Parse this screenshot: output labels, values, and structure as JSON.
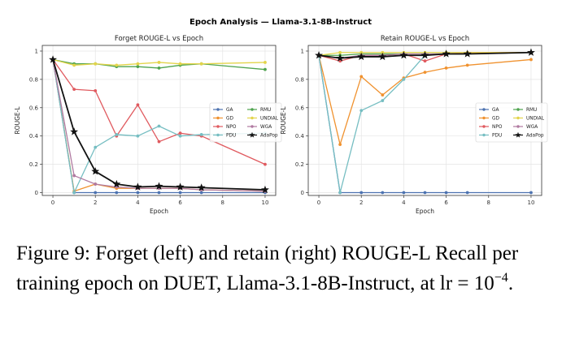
{
  "suptitle": "Epoch Analysis — Llama-3.1-8B-Instruct",
  "caption": {
    "main": "Figure 9: Forget (left) and retain (right) ROUGE-L Recall per training epoch on DUET, Llama-3.1-8B-Instruct, at lr = 10",
    "exponent": "−4",
    "end": "."
  },
  "colors": {
    "GA": "#4c72b0",
    "GD": "#f0922f",
    "NPO": "#e05a5f",
    "PDU": "#76bec2",
    "RMU": "#4ea34e",
    "UNDIAL": "#e3d44a",
    "WGA": "#b07aa1",
    "AdaPop": "#111111"
  },
  "chart_data": [
    {
      "type": "line",
      "title": "Forget ROUGE-L vs Epoch",
      "xlabel": "Epoch",
      "ylabel": "ROUGE-L",
      "xlim": [
        -0.5,
        10.5
      ],
      "ylim": [
        -0.02,
        1.04
      ],
      "xticks": [
        0,
        2,
        4,
        6,
        8,
        10
      ],
      "yticks": [
        0.0,
        0.2,
        0.4,
        0.6,
        0.8,
        1.0
      ],
      "grid": true,
      "legend": "center-right",
      "legend_cols": [
        [
          "GA",
          "GD",
          "NPO",
          "PDU"
        ],
        [
          "RMU",
          "UNDIAL",
          "WGA",
          "AdaPop"
        ]
      ],
      "x": [
        0,
        1,
        2,
        3,
        4,
        5,
        6,
        7,
        10
      ],
      "series": [
        {
          "name": "GA",
          "values": [
            0.94,
            0.0,
            0.0,
            0.0,
            0.0,
            0.0,
            0.0,
            0.0,
            0.0
          ]
        },
        {
          "name": "GD",
          "values": [
            0.94,
            0.01,
            0.06,
            0.03,
            0.03,
            0.03,
            0.03,
            0.02,
            0.01
          ]
        },
        {
          "name": "NPO",
          "values": [
            0.94,
            0.73,
            0.72,
            0.4,
            0.62,
            0.36,
            0.42,
            0.4,
            0.2
          ]
        },
        {
          "name": "PDU",
          "values": [
            0.94,
            0.0,
            0.32,
            0.41,
            0.4,
            0.47,
            0.4,
            0.41,
            0.42
          ]
        },
        {
          "name": "RMU",
          "values": [
            0.94,
            0.91,
            0.91,
            0.89,
            0.89,
            0.88,
            0.9,
            0.91,
            0.87
          ]
        },
        {
          "name": "UNDIAL",
          "values": [
            0.94,
            0.9,
            0.91,
            0.9,
            0.91,
            0.92,
            0.91,
            0.91,
            0.92
          ]
        },
        {
          "name": "WGA",
          "values": [
            0.94,
            0.12,
            0.06,
            0.04,
            0.03,
            0.03,
            0.03,
            0.02,
            0.01
          ]
        },
        {
          "name": "AdaPop",
          "values": [
            0.94,
            0.43,
            0.15,
            0.06,
            0.04,
            0.045,
            0.04,
            0.035,
            0.02
          ]
        }
      ]
    },
    {
      "type": "line",
      "title": "Retain ROUGE-L vs Epoch",
      "xlabel": "Epoch",
      "ylabel": "ROUGE-L",
      "xlim": [
        -0.5,
        10.5
      ],
      "ylim": [
        -0.02,
        1.04
      ],
      "xticks": [
        0,
        2,
        4,
        6,
        8,
        10
      ],
      "yticks": [
        0.0,
        0.2,
        0.4,
        0.6,
        0.8,
        1.0
      ],
      "grid": true,
      "legend": "lower-right",
      "legend_cols": [
        [
          "GA",
          "GD",
          "NPO",
          "PDU"
        ],
        [
          "RMU",
          "UNDIAL",
          "WGA",
          "AdaPop"
        ]
      ],
      "x": [
        0,
        1,
        2,
        3,
        4,
        5,
        6,
        7,
        10
      ],
      "series": [
        {
          "name": "GA",
          "values": [
            0.97,
            0.0,
            0.0,
            0.0,
            0.0,
            0.0,
            0.0,
            0.0,
            0.0
          ]
        },
        {
          "name": "GD",
          "values": [
            0.97,
            0.34,
            0.82,
            0.69,
            0.81,
            0.85,
            0.88,
            0.9,
            0.94
          ]
        },
        {
          "name": "NPO",
          "values": [
            0.97,
            0.93,
            0.97,
            0.97,
            0.98,
            0.93,
            0.98,
            0.99,
            0.99
          ]
        },
        {
          "name": "PDU",
          "values": [
            0.97,
            0.0,
            0.58,
            0.65,
            0.8,
            0.97,
            0.98,
            0.98,
            0.99
          ]
        },
        {
          "name": "RMU",
          "values": [
            0.97,
            0.97,
            0.98,
            0.98,
            0.98,
            0.98,
            0.98,
            0.98,
            0.99
          ]
        },
        {
          "name": "UNDIAL",
          "values": [
            0.97,
            0.99,
            0.99,
            0.99,
            0.99,
            0.99,
            0.99,
            0.99,
            0.99
          ]
        },
        {
          "name": "WGA",
          "values": [
            0.97,
            0.95,
            0.97,
            0.97,
            0.98,
            0.98,
            0.98,
            0.98,
            0.99
          ]
        },
        {
          "name": "AdaPop",
          "values": [
            0.97,
            0.95,
            0.96,
            0.96,
            0.97,
            0.97,
            0.98,
            0.98,
            0.99
          ]
        }
      ]
    }
  ]
}
